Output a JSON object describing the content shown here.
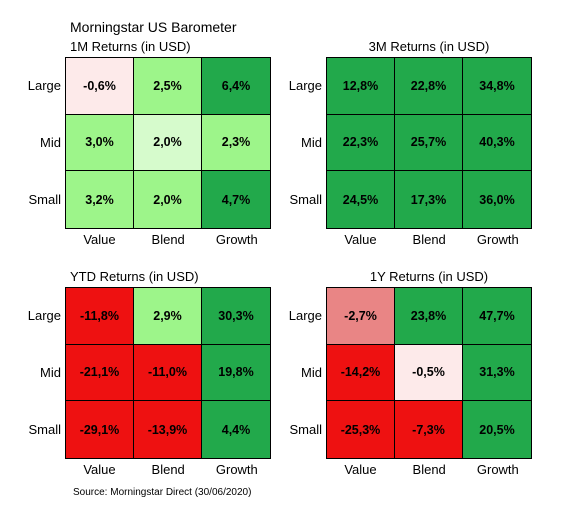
{
  "header": {
    "title": "Morningstar US Barometer",
    "source": "Source: Morningstar Direct (30/06/2020)"
  },
  "chart_data": [
    {
      "type": "heatmap",
      "title": "1M Returns (in USD)",
      "rows": [
        "Large",
        "Mid",
        "Small"
      ],
      "columns": [
        "Value",
        "Blend",
        "Growth"
      ],
      "values": [
        [
          -0.6,
          2.5,
          6.4
        ],
        [
          3.0,
          2.0,
          2.3
        ],
        [
          3.2,
          2.0,
          4.7
        ]
      ],
      "labels": [
        [
          "-0,6%",
          "2,5%",
          "6,4%"
        ],
        [
          "3,0%",
          "2,0%",
          "2,3%"
        ],
        [
          "3,2%",
          "2,0%",
          "4,7%"
        ]
      ],
      "colors": [
        [
          "#fdeaea",
          "#9df58a",
          "#22a94b"
        ],
        [
          "#9df58a",
          "#d6fbcc",
          "#9df58a"
        ],
        [
          "#9df58a",
          "#9df58a",
          "#22a94b"
        ]
      ]
    },
    {
      "type": "heatmap",
      "title": "3M Returns (in USD)",
      "rows": [
        "Large",
        "Mid",
        "Small"
      ],
      "columns": [
        "Value",
        "Blend",
        "Growth"
      ],
      "values": [
        [
          12.8,
          22.8,
          34.8
        ],
        [
          22.3,
          25.7,
          40.3
        ],
        [
          24.5,
          17.3,
          36.0
        ]
      ],
      "labels": [
        [
          "12,8%",
          "22,8%",
          "34,8%"
        ],
        [
          "22,3%",
          "25,7%",
          "40,3%"
        ],
        [
          "24,5%",
          "17,3%",
          "36,0%"
        ]
      ],
      "colors": [
        [
          "#22a94b",
          "#22a94b",
          "#22a94b"
        ],
        [
          "#22a94b",
          "#22a94b",
          "#22a94b"
        ],
        [
          "#22a94b",
          "#22a94b",
          "#22a94b"
        ]
      ]
    },
    {
      "type": "heatmap",
      "title": "YTD Returns (in USD)",
      "rows": [
        "Large",
        "Mid",
        "Small"
      ],
      "columns": [
        "Value",
        "Blend",
        "Growth"
      ],
      "values": [
        [
          -11.8,
          2.9,
          30.3
        ],
        [
          -21.1,
          -11.0,
          19.8
        ],
        [
          -29.1,
          -13.9,
          4.4
        ]
      ],
      "labels": [
        [
          "-11,8%",
          "2,9%",
          "30,3%"
        ],
        [
          "-21,1%",
          "-11,0%",
          "19,8%"
        ],
        [
          "-29,1%",
          "-13,9%",
          "4,4%"
        ]
      ],
      "colors": [
        [
          "#ee1111",
          "#9df58a",
          "#22a94b"
        ],
        [
          "#ee1111",
          "#ee1111",
          "#22a94b"
        ],
        [
          "#ee1111",
          "#ee1111",
          "#22a94b"
        ]
      ]
    },
    {
      "type": "heatmap",
      "title": "1Y Returns (in USD)",
      "rows": [
        "Large",
        "Mid",
        "Small"
      ],
      "columns": [
        "Value",
        "Blend",
        "Growth"
      ],
      "values": [
        [
          -2.7,
          23.8,
          47.7
        ],
        [
          -14.2,
          -0.5,
          31.3
        ],
        [
          -25.3,
          -7.3,
          20.5
        ]
      ],
      "labels": [
        [
          "-2,7%",
          "23,8%",
          "47,7%"
        ],
        [
          "-14,2%",
          "-0,5%",
          "31,3%"
        ],
        [
          "-25,3%",
          "-7,3%",
          "20,5%"
        ]
      ],
      "colors": [
        [
          "#e98585",
          "#22a94b",
          "#22a94b"
        ],
        [
          "#ee1111",
          "#fdeaea",
          "#22a94b"
        ],
        [
          "#ee1111",
          "#ee1111",
          "#22a94b"
        ]
      ]
    }
  ]
}
